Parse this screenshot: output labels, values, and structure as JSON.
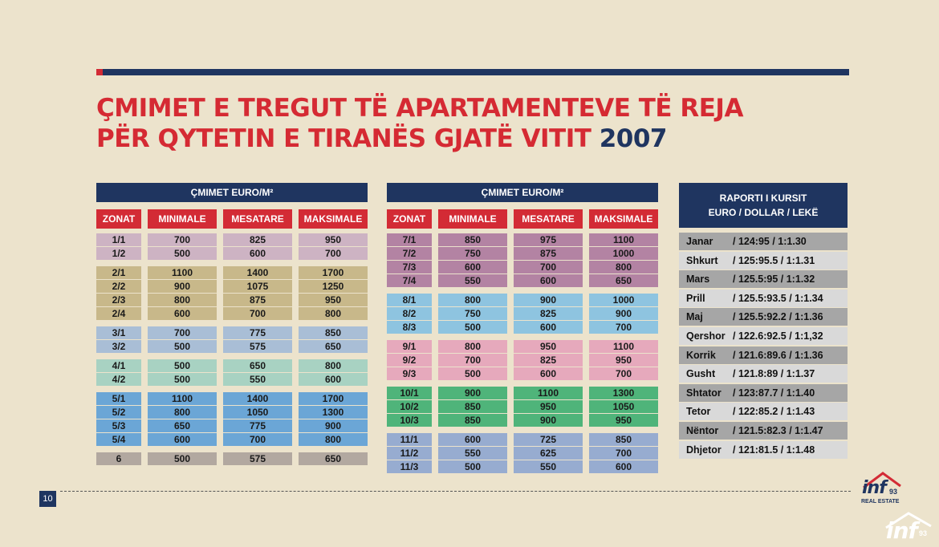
{
  "title": {
    "line1": "ÇMIMET E TREGUT TË APARTAMENTEVE TË REJA",
    "line2": "PËR QYTETIN E TIRANËS GJATË VITIT",
    "year": "2007"
  },
  "colors": {
    "navy": "#1f3560",
    "red": "#d32b35",
    "background": "#ece3cc"
  },
  "tables": [
    {
      "header": "ÇMIMET EURO/M²",
      "columns": [
        "ZONAT",
        "MINIMALE",
        "MESATARE",
        "MAKSIMALE"
      ],
      "groups": [
        {
          "color": "#cdb3c3",
          "rows": [
            [
              "1/1",
              "700",
              "825",
              "950"
            ],
            [
              "1/2",
              "500",
              "600",
              "700"
            ]
          ]
        },
        {
          "color": "#c8b88a",
          "rows": [
            [
              "2/1",
              "1100",
              "1400",
              "1700"
            ],
            [
              "2/2",
              "900",
              "1075",
              "1250"
            ],
            [
              "2/3",
              "800",
              "875",
              "950"
            ],
            [
              "2/4",
              "600",
              "700",
              "800"
            ]
          ]
        },
        {
          "color": "#a9bed6",
          "rows": [
            [
              "3/1",
              "700",
              "775",
              "850"
            ],
            [
              "3/2",
              "500",
              "575",
              "650"
            ]
          ]
        },
        {
          "color": "#a8d2c2",
          "rows": [
            [
              "4/1",
              "500",
              "650",
              "800"
            ],
            [
              "4/2",
              "500",
              "550",
              "600"
            ]
          ]
        },
        {
          "color": "#6ba6d6",
          "rows": [
            [
              "5/1",
              "1100",
              "1400",
              "1700"
            ],
            [
              "5/2",
              "800",
              "1050",
              "1300"
            ],
            [
              "5/3",
              "650",
              "775",
              "900"
            ],
            [
              "5/4",
              "600",
              "700",
              "800"
            ]
          ]
        },
        {
          "color": "#b2a8a0",
          "rows": [
            [
              "6",
              "500",
              "575",
              "650"
            ]
          ]
        }
      ]
    },
    {
      "header": "ÇMIMET EURO/M²",
      "columns": [
        "ZONAT",
        "MINIMALE",
        "MESATARE",
        "MAKSIMALE"
      ],
      "groups": [
        {
          "color": "#b383a3",
          "rows": [
            [
              "7/1",
              "850",
              "975",
              "1100"
            ],
            [
              "7/2",
              "750",
              "875",
              "1000"
            ],
            [
              "7/3",
              "600",
              "700",
              "800"
            ],
            [
              "7/4",
              "550",
              "600",
              "650"
            ]
          ]
        },
        {
          "color": "#8ec4e0",
          "rows": [
            [
              "8/1",
              "800",
              "900",
              "1000"
            ],
            [
              "8/2",
              "750",
              "825",
              "900"
            ],
            [
              "8/3",
              "500",
              "600",
              "700"
            ]
          ]
        },
        {
          "color": "#e6a9bc",
          "rows": [
            [
              "9/1",
              "800",
              "950",
              "1100"
            ],
            [
              "9/2",
              "700",
              "825",
              "950"
            ],
            [
              "9/3",
              "500",
              "600",
              "700"
            ]
          ]
        },
        {
          "color": "#4fb47a",
          "rows": [
            [
              "10/1",
              "900",
              "1100",
              "1300"
            ],
            [
              "10/2",
              "850",
              "950",
              "1050"
            ],
            [
              "10/3",
              "850",
              "900",
              "950"
            ]
          ]
        },
        {
          "color": "#97acd0",
          "rows": [
            [
              "11/1",
              "600",
              "725",
              "850"
            ],
            [
              "11/2",
              "550",
              "625",
              "700"
            ],
            [
              "11/3",
              "500",
              "550",
              "600"
            ]
          ]
        }
      ]
    }
  ],
  "exchange": {
    "header_line1": "RAPORTI I KURSIT",
    "header_line2": "EURO / DOLLAR / LEKË",
    "rows": [
      {
        "month": "Janar",
        "value": "/ 124:95  /  1:1.30"
      },
      {
        "month": "Shkurt",
        "value": "/ 125:95.5  /  1:1.31"
      },
      {
        "month": "Mars",
        "value": "/ 125.5:95  /  1:1.32"
      },
      {
        "month": "Prill",
        "value": "/ 125.5:93.5  /  1:1.34"
      },
      {
        "month": "Maj",
        "value": "/ 125.5:92.2  /  1:1.36"
      },
      {
        "month": "Qershor",
        "value": "/ 122.6:92.5  /  1:1,32"
      },
      {
        "month": "Korrik",
        "value": "/ 121.6:89.6  /  1:1.36"
      },
      {
        "month": "Gusht",
        "value": "/ 121.8:89  /  1:1.37"
      },
      {
        "month": "Shtator",
        "value": "/ 123:87.7  /  1:1.40"
      },
      {
        "month": "Tetor",
        "value": "/ 122:85.2  /  1:1.43"
      },
      {
        "month": "Nëntor",
        "value": "/ 121.5:82.3  /  1:1.47"
      },
      {
        "month": "Dhjetor",
        "value": "/ 121:81.5  /  1:1.48"
      }
    ]
  },
  "footer": {
    "page_number": "10",
    "logo_text": "inf",
    "logo_number": "93",
    "logo_subtitle": "REAL ESTATE",
    "watermark_text": "inf",
    "watermark_number": "93"
  }
}
